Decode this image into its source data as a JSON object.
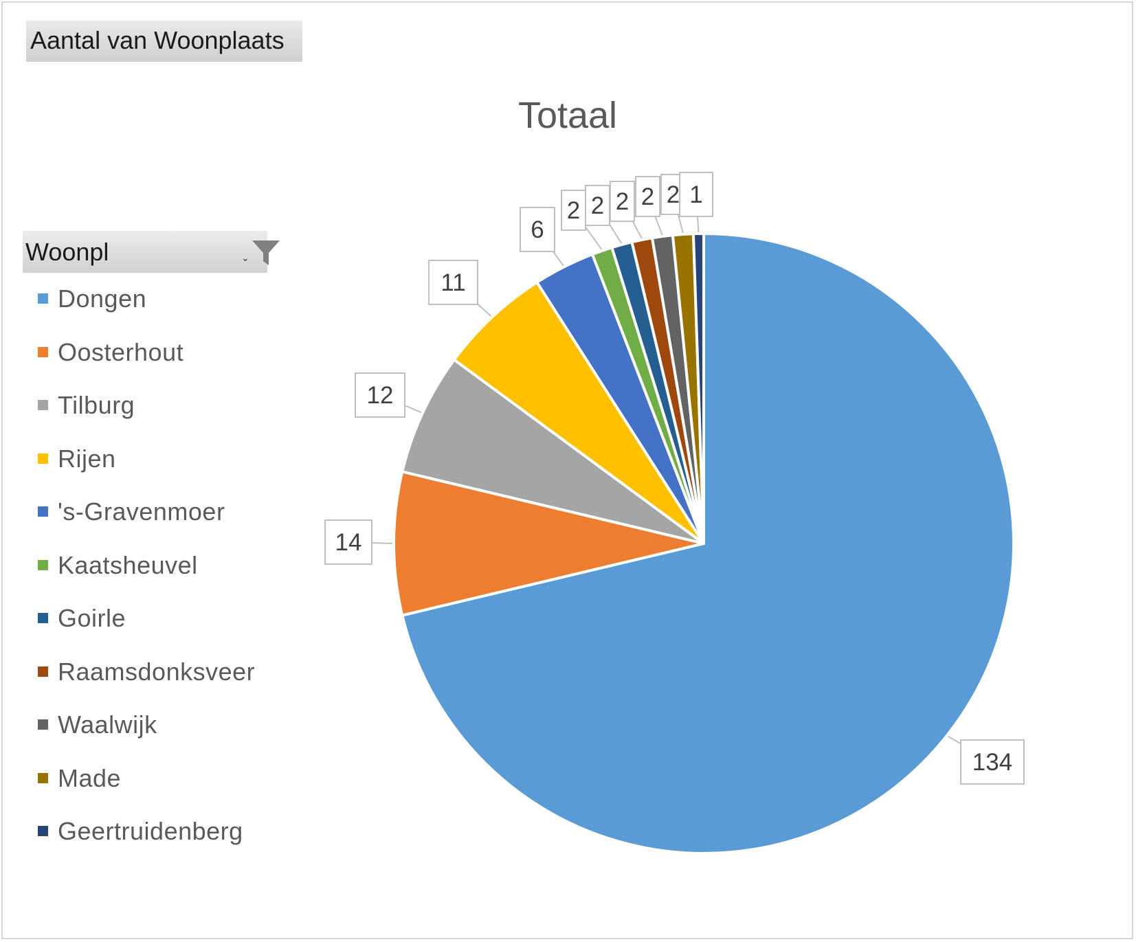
{
  "field_button": {
    "label": "Aantal van Woonplaats"
  },
  "legend_filter": {
    "label": "Woonpl",
    "dropdown_glyph": "⌄",
    "icon": "filter-icon"
  },
  "chart_data": {
    "type": "pie",
    "title": "Totaal",
    "legend_position": "left",
    "categories": [
      "Dongen",
      "Oosterhout",
      "Tilburg",
      "Rijen",
      "'s-Gravenmoer",
      "Kaatsheuvel",
      "Goirle",
      "Raamsdonksveer",
      "Waalwijk",
      "Made",
      "Geertruidenberg"
    ],
    "values": [
      134,
      14,
      12,
      11,
      6,
      2,
      2,
      2,
      2,
      2,
      1
    ],
    "data_labels": [
      "134",
      "14",
      "12",
      "11",
      "6",
      "2",
      "2",
      "2",
      "2",
      "2",
      "1"
    ],
    "colors": [
      "#5b9bd5",
      "#ed7d31",
      "#a5a5a5",
      "#ffc000",
      "#4472c4",
      "#70ad47",
      "#255e91",
      "#9e480e",
      "#636363",
      "#997300",
      "#264478"
    ]
  }
}
